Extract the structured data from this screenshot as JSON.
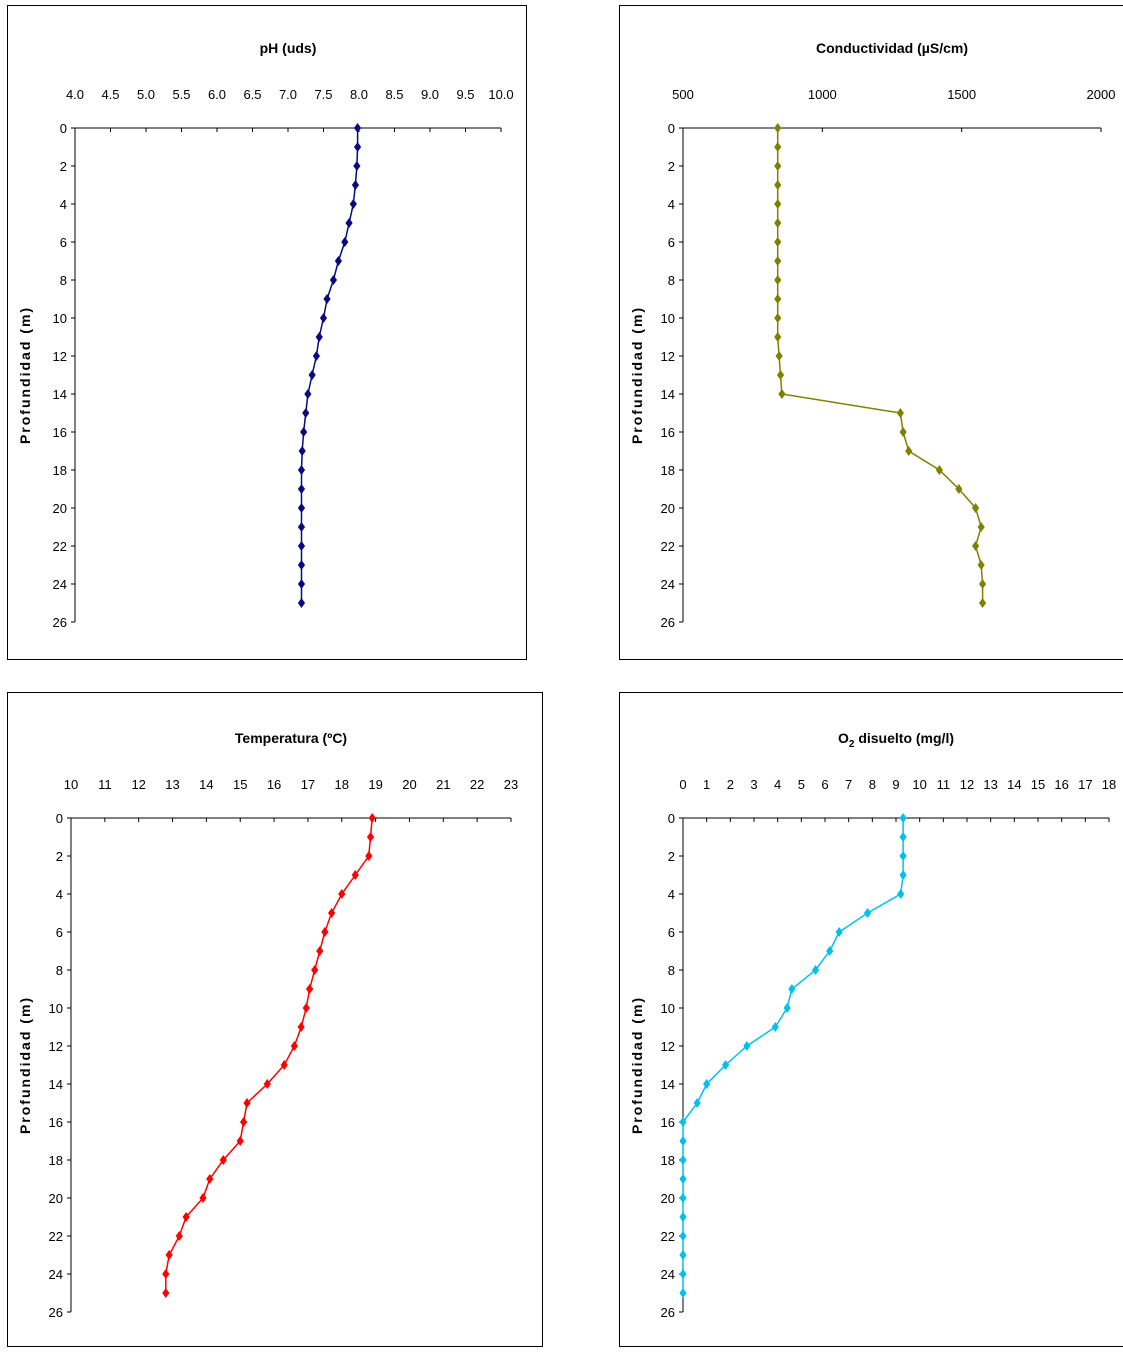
{
  "chart_data": [
    {
      "type": "line",
      "title": "pH (uds)",
      "ylabel": "Profundidad (m)",
      "xlim": [
        4.0,
        10.0
      ],
      "ylim": [
        0,
        26
      ],
      "x_ticks": [
        "4.0",
        "4.5",
        "5.0",
        "5.5",
        "6.0",
        "6.5",
        "7.0",
        "7.5",
        "8.0",
        "8.5",
        "9.0",
        "9.5",
        "10.0"
      ],
      "y_ticks": [
        "0",
        "2",
        "4",
        "6",
        "8",
        "10",
        "12",
        "14",
        "16",
        "18",
        "20",
        "22",
        "24",
        "26"
      ],
      "color": "#0a0a80",
      "series": [
        {
          "depth": [
            0,
            1,
            2,
            3,
            4,
            5,
            6,
            7,
            8,
            9,
            10,
            11,
            12,
            13,
            14,
            15,
            16,
            17,
            18,
            19,
            20,
            21,
            22,
            23,
            24,
            25
          ],
          "values": [
            7.98,
            7.98,
            7.97,
            7.95,
            7.92,
            7.86,
            7.8,
            7.71,
            7.64,
            7.55,
            7.5,
            7.44,
            7.4,
            7.34,
            7.28,
            7.25,
            7.22,
            7.2,
            7.19,
            7.19,
            7.19,
            7.19,
            7.19,
            7.19,
            7.19,
            7.19
          ]
        }
      ]
    },
    {
      "type": "line",
      "title": "Conductividad (µS/cm)",
      "ylabel": "Profundidad (m)",
      "xlim": [
        500,
        2000
      ],
      "ylim": [
        0,
        26
      ],
      "x_ticks": [
        "500",
        "1000",
        "1500",
        "2000"
      ],
      "y_ticks": [
        "0",
        "2",
        "4",
        "6",
        "8",
        "10",
        "12",
        "14",
        "16",
        "18",
        "20",
        "22",
        "24",
        "26"
      ],
      "color": "#808000",
      "series": [
        {
          "depth": [
            0,
            1,
            2,
            3,
            4,
            5,
            6,
            7,
            8,
            9,
            10,
            11,
            12,
            13,
            14,
            15,
            16,
            17,
            18,
            19,
            20,
            21,
            22,
            23,
            24,
            25
          ],
          "values": [
            840,
            840,
            840,
            840,
            840,
            840,
            840,
            840,
            840,
            840,
            840,
            840,
            845,
            850,
            855,
            1280,
            1290,
            1310,
            1420,
            1490,
            1550,
            1570,
            1550,
            1570,
            1575,
            1575
          ]
        }
      ]
    },
    {
      "type": "line",
      "title": "Temperatura (ºC)",
      "ylabel": "Profundidad (m)",
      "xlim": [
        10,
        23
      ],
      "ylim": [
        0,
        26
      ],
      "x_ticks": [
        "10",
        "11",
        "12",
        "13",
        "14",
        "15",
        "16",
        "17",
        "18",
        "19",
        "20",
        "21",
        "22",
        "23"
      ],
      "y_ticks": [
        "0",
        "2",
        "4",
        "6",
        "8",
        "10",
        "12",
        "14",
        "16",
        "18",
        "20",
        "22",
        "24",
        "26"
      ],
      "color": "#ff0000",
      "series": [
        {
          "depth": [
            0,
            1,
            2,
            3,
            4,
            5,
            6,
            7,
            8,
            9,
            10,
            11,
            12,
            13,
            14,
            15,
            16,
            17,
            18,
            19,
            20,
            21,
            22,
            23,
            24,
            25
          ],
          "values": [
            18.9,
            18.85,
            18.8,
            18.4,
            18.0,
            17.7,
            17.5,
            17.35,
            17.2,
            17.05,
            16.95,
            16.8,
            16.6,
            16.3,
            15.8,
            15.2,
            15.1,
            15.0,
            14.5,
            14.1,
            13.9,
            13.4,
            13.2,
            12.9,
            12.8,
            12.8
          ]
        }
      ]
    },
    {
      "type": "line",
      "title": "O2 disuelto (mg/l)",
      "title_main": "O",
      "title_sub": "2",
      "title_rest": " disuelto (mg/l)",
      "ylabel": "Profundidad (m)",
      "xlim": [
        0,
        18
      ],
      "ylim": [
        0,
        26
      ],
      "x_ticks": [
        "0",
        "1",
        "2",
        "3",
        "4",
        "5",
        "6",
        "7",
        "8",
        "9",
        "10",
        "11",
        "12",
        "13",
        "14",
        "15",
        "16",
        "17",
        "18"
      ],
      "y_ticks": [
        "0",
        "2",
        "4",
        "6",
        "8",
        "10",
        "12",
        "14",
        "16",
        "18",
        "20",
        "22",
        "24",
        "26"
      ],
      "color": "#00c0f0",
      "series": [
        {
          "depth": [
            0,
            1,
            2,
            3,
            4,
            5,
            6,
            7,
            8,
            9,
            10,
            11,
            12,
            13,
            14,
            15,
            16,
            17,
            18,
            19,
            20,
            21,
            22,
            23,
            24,
            25
          ],
          "values": [
            9.3,
            9.3,
            9.3,
            9.3,
            9.2,
            7.8,
            6.6,
            6.2,
            5.6,
            4.6,
            4.4,
            3.9,
            2.7,
            1.8,
            1.0,
            0.6,
            0.0,
            0.0,
            0.0,
            0.0,
            0.0,
            0.0,
            0.0,
            0.0,
            0.0,
            0.0
          ]
        }
      ]
    }
  ]
}
